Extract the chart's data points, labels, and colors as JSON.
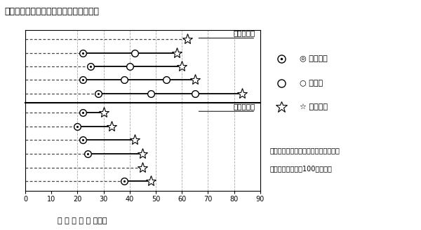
{
  "title": "図１．分娩後における排卵・発情の経過",
  "xlabel": "分 娩 後 日 数 （日）",
  "xlim": [
    0,
    90
  ],
  "xticks": [
    0,
    10,
    20,
    30,
    40,
    50,
    60,
    70,
    80,
    90
  ],
  "vlines": [
    20,
    30,
    40,
    50,
    60,
    70,
    80
  ],
  "twin_label": "双子分娩牛",
  "twin_rows": [
    {
      "first_ov": null,
      "ovs": [],
      "star": 62
    },
    {
      "first_ov": 22,
      "ovs": [
        42
      ],
      "star": 58
    },
    {
      "first_ov": 25,
      "ovs": [
        40
      ],
      "star": 60
    },
    {
      "first_ov": 22,
      "ovs": [
        38,
        54
      ],
      "star": 65
    },
    {
      "first_ov": 28,
      "ovs": [
        48,
        65
      ],
      "star": 83
    }
  ],
  "single_label": "単子分娩牛",
  "single_rows": [
    {
      "first_ov": 22,
      "ovs": [],
      "star": 30
    },
    {
      "first_ov": 20,
      "ovs": [],
      "star": 33
    },
    {
      "first_ov": 22,
      "ovs": [],
      "star": 42
    },
    {
      "first_ov": 24,
      "ovs": [],
      "star": 45
    },
    {
      "first_ov": null,
      "ovs": [],
      "star": 45
    },
    {
      "first_ov": 38,
      "ovs": [],
      "star": 48
    }
  ],
  "legend_sym1": "◎ 初回排卵",
  "legend_sym2": "○ 排　卵",
  "legend_sym3": "☆ 初回発情",
  "note_line1": "注．双子分娩牛、単子分娩牛どちらも",
  "note_line2": "　　日本飼養標準100％で飼養",
  "fig_width": 6.0,
  "fig_height": 3.29,
  "dpi": 100,
  "bg_color": "#ffffff",
  "line_color": "#000000",
  "dot_line_color": "#444444"
}
